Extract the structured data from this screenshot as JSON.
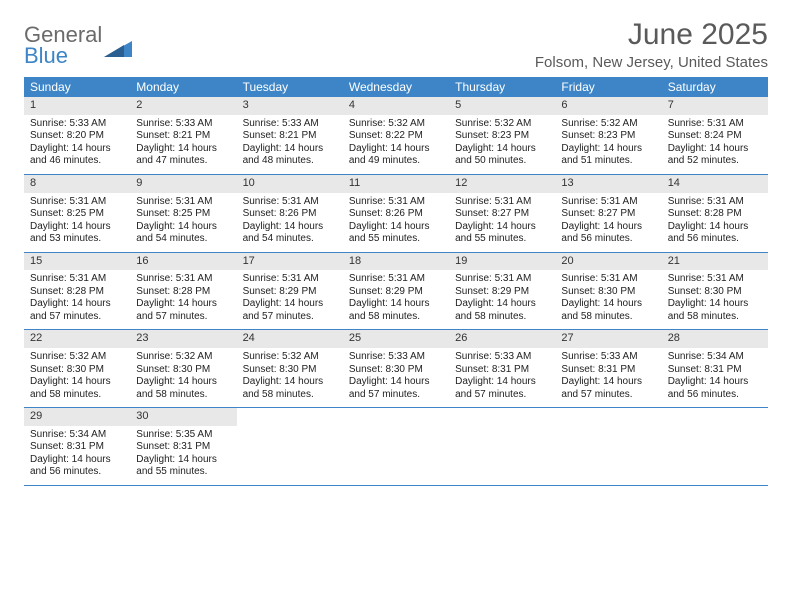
{
  "logo": {
    "line1": "General",
    "line2": "Blue"
  },
  "title": "June 2025",
  "location": "Folsom, New Jersey, United States",
  "colors": {
    "header_bg": "#3d85c6",
    "header_text": "#ffffff",
    "daynum_bg": "#e8e8e8",
    "border": "#3d85c6",
    "logo_gray": "#6b6b6b",
    "logo_blue": "#3d85c6",
    "title_color": "#5a5a5a"
  },
  "day_headers": [
    "Sunday",
    "Monday",
    "Tuesday",
    "Wednesday",
    "Thursday",
    "Friday",
    "Saturday"
  ],
  "weeks": [
    [
      {
        "n": "1",
        "sr": "Sunrise: 5:33 AM",
        "ss": "Sunset: 8:20 PM",
        "dl": "Daylight: 14 hours and 46 minutes."
      },
      {
        "n": "2",
        "sr": "Sunrise: 5:33 AM",
        "ss": "Sunset: 8:21 PM",
        "dl": "Daylight: 14 hours and 47 minutes."
      },
      {
        "n": "3",
        "sr": "Sunrise: 5:33 AM",
        "ss": "Sunset: 8:21 PM",
        "dl": "Daylight: 14 hours and 48 minutes."
      },
      {
        "n": "4",
        "sr": "Sunrise: 5:32 AM",
        "ss": "Sunset: 8:22 PM",
        "dl": "Daylight: 14 hours and 49 minutes."
      },
      {
        "n": "5",
        "sr": "Sunrise: 5:32 AM",
        "ss": "Sunset: 8:23 PM",
        "dl": "Daylight: 14 hours and 50 minutes."
      },
      {
        "n": "6",
        "sr": "Sunrise: 5:32 AM",
        "ss": "Sunset: 8:23 PM",
        "dl": "Daylight: 14 hours and 51 minutes."
      },
      {
        "n": "7",
        "sr": "Sunrise: 5:31 AM",
        "ss": "Sunset: 8:24 PM",
        "dl": "Daylight: 14 hours and 52 minutes."
      }
    ],
    [
      {
        "n": "8",
        "sr": "Sunrise: 5:31 AM",
        "ss": "Sunset: 8:25 PM",
        "dl": "Daylight: 14 hours and 53 minutes."
      },
      {
        "n": "9",
        "sr": "Sunrise: 5:31 AM",
        "ss": "Sunset: 8:25 PM",
        "dl": "Daylight: 14 hours and 54 minutes."
      },
      {
        "n": "10",
        "sr": "Sunrise: 5:31 AM",
        "ss": "Sunset: 8:26 PM",
        "dl": "Daylight: 14 hours and 54 minutes."
      },
      {
        "n": "11",
        "sr": "Sunrise: 5:31 AM",
        "ss": "Sunset: 8:26 PM",
        "dl": "Daylight: 14 hours and 55 minutes."
      },
      {
        "n": "12",
        "sr": "Sunrise: 5:31 AM",
        "ss": "Sunset: 8:27 PM",
        "dl": "Daylight: 14 hours and 55 minutes."
      },
      {
        "n": "13",
        "sr": "Sunrise: 5:31 AM",
        "ss": "Sunset: 8:27 PM",
        "dl": "Daylight: 14 hours and 56 minutes."
      },
      {
        "n": "14",
        "sr": "Sunrise: 5:31 AM",
        "ss": "Sunset: 8:28 PM",
        "dl": "Daylight: 14 hours and 56 minutes."
      }
    ],
    [
      {
        "n": "15",
        "sr": "Sunrise: 5:31 AM",
        "ss": "Sunset: 8:28 PM",
        "dl": "Daylight: 14 hours and 57 minutes."
      },
      {
        "n": "16",
        "sr": "Sunrise: 5:31 AM",
        "ss": "Sunset: 8:28 PM",
        "dl": "Daylight: 14 hours and 57 minutes."
      },
      {
        "n": "17",
        "sr": "Sunrise: 5:31 AM",
        "ss": "Sunset: 8:29 PM",
        "dl": "Daylight: 14 hours and 57 minutes."
      },
      {
        "n": "18",
        "sr": "Sunrise: 5:31 AM",
        "ss": "Sunset: 8:29 PM",
        "dl": "Daylight: 14 hours and 58 minutes."
      },
      {
        "n": "19",
        "sr": "Sunrise: 5:31 AM",
        "ss": "Sunset: 8:29 PM",
        "dl": "Daylight: 14 hours and 58 minutes."
      },
      {
        "n": "20",
        "sr": "Sunrise: 5:31 AM",
        "ss": "Sunset: 8:30 PM",
        "dl": "Daylight: 14 hours and 58 minutes."
      },
      {
        "n": "21",
        "sr": "Sunrise: 5:31 AM",
        "ss": "Sunset: 8:30 PM",
        "dl": "Daylight: 14 hours and 58 minutes."
      }
    ],
    [
      {
        "n": "22",
        "sr": "Sunrise: 5:32 AM",
        "ss": "Sunset: 8:30 PM",
        "dl": "Daylight: 14 hours and 58 minutes."
      },
      {
        "n": "23",
        "sr": "Sunrise: 5:32 AM",
        "ss": "Sunset: 8:30 PM",
        "dl": "Daylight: 14 hours and 58 minutes."
      },
      {
        "n": "24",
        "sr": "Sunrise: 5:32 AM",
        "ss": "Sunset: 8:30 PM",
        "dl": "Daylight: 14 hours and 58 minutes."
      },
      {
        "n": "25",
        "sr": "Sunrise: 5:33 AM",
        "ss": "Sunset: 8:30 PM",
        "dl": "Daylight: 14 hours and 57 minutes."
      },
      {
        "n": "26",
        "sr": "Sunrise: 5:33 AM",
        "ss": "Sunset: 8:31 PM",
        "dl": "Daylight: 14 hours and 57 minutes."
      },
      {
        "n": "27",
        "sr": "Sunrise: 5:33 AM",
        "ss": "Sunset: 8:31 PM",
        "dl": "Daylight: 14 hours and 57 minutes."
      },
      {
        "n": "28",
        "sr": "Sunrise: 5:34 AM",
        "ss": "Sunset: 8:31 PM",
        "dl": "Daylight: 14 hours and 56 minutes."
      }
    ],
    [
      {
        "n": "29",
        "sr": "Sunrise: 5:34 AM",
        "ss": "Sunset: 8:31 PM",
        "dl": "Daylight: 14 hours and 56 minutes."
      },
      {
        "n": "30",
        "sr": "Sunrise: 5:35 AM",
        "ss": "Sunset: 8:31 PM",
        "dl": "Daylight: 14 hours and 55 minutes."
      },
      null,
      null,
      null,
      null,
      null
    ]
  ]
}
